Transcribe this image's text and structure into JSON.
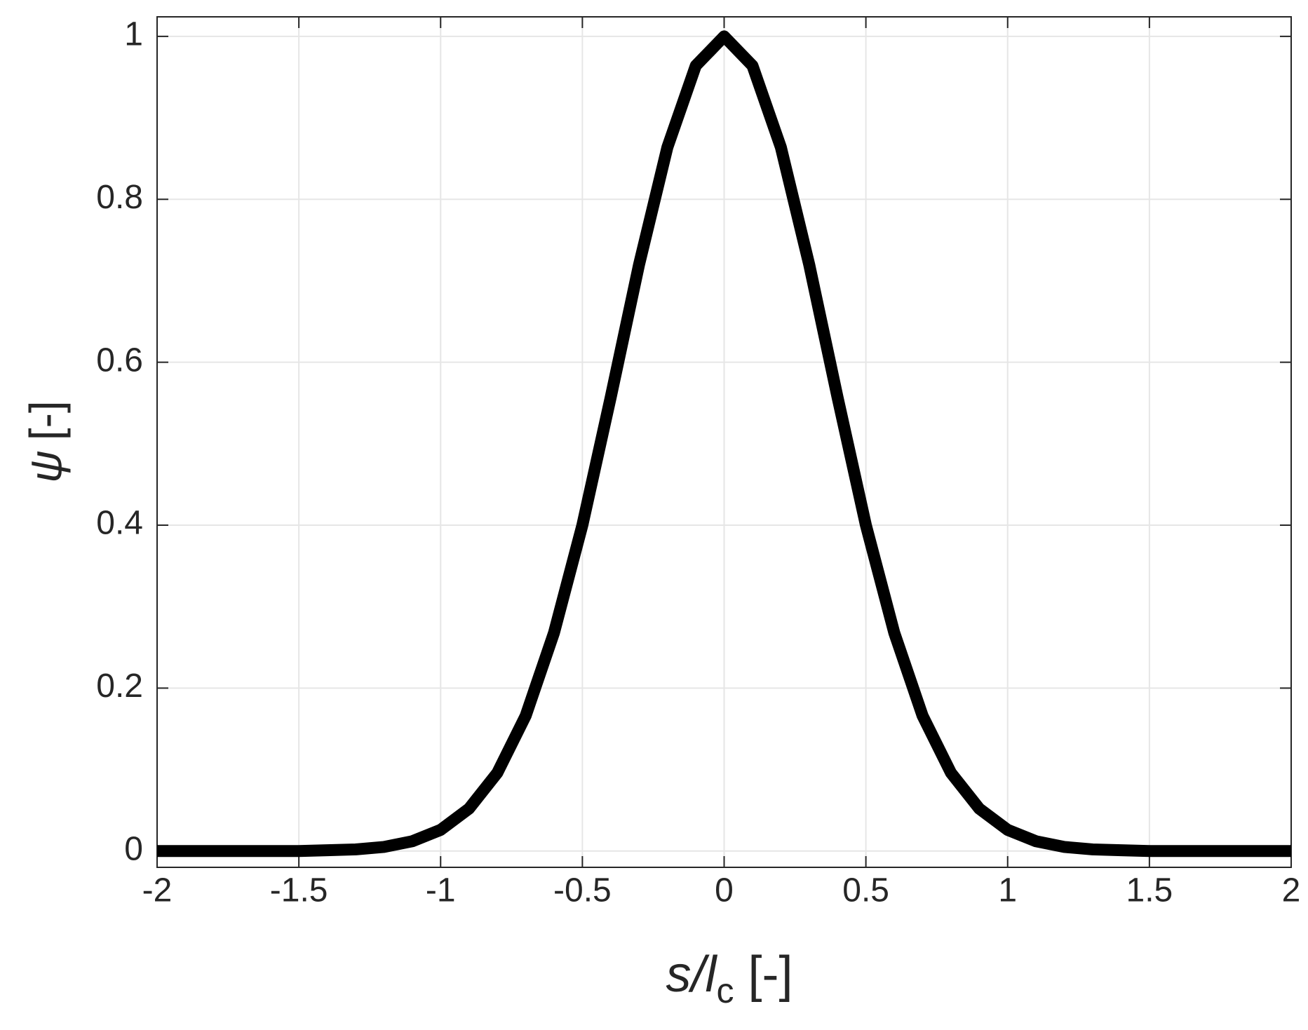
{
  "chart_data": {
    "type": "line",
    "x_label": {
      "var": "s/l",
      "sub": "c",
      "unit": "[-]"
    },
    "y_label": {
      "symbol": "ψ",
      "unit": "[-]"
    },
    "x": [
      -2,
      -1.9,
      -1.8,
      -1.7,
      -1.6,
      -1.5,
      -1.4,
      -1.3,
      -1.2,
      -1.1,
      -1,
      -0.9,
      -0.8,
      -0.7,
      -0.6,
      -0.5,
      -0.4,
      -0.3,
      -0.2,
      -0.1,
      0,
      0.1,
      0.2,
      0.3,
      0.4,
      0.5,
      0.6,
      0.7,
      0.8,
      0.9,
      1,
      1.1,
      1.2,
      1.3,
      1.4,
      1.5,
      1.6,
      1.7,
      1.8,
      1.9,
      2
    ],
    "series": [
      {
        "color": "#000000",
        "values": [
          0,
          0,
          0,
          0,
          0,
          0,
          0.001,
          0.002,
          0.005,
          0.012,
          0.026,
          0.052,
          0.096,
          0.166,
          0.268,
          0.4,
          0.557,
          0.72,
          0.864,
          0.964,
          1,
          0.964,
          0.864,
          0.72,
          0.557,
          0.4,
          0.268,
          0.166,
          0.096,
          0.052,
          0.026,
          0.012,
          0.005,
          0.002,
          0.001,
          0,
          0,
          0,
          0,
          0,
          0
        ]
      }
    ],
    "xlim": [
      -2,
      2
    ],
    "ylim": [
      -0.02,
      1.024
    ],
    "xticks": [
      -2,
      -1.5,
      -1,
      -0.5,
      0,
      0.5,
      1,
      1.5,
      2
    ],
    "yticks": [
      0,
      0.2,
      0.4,
      0.6,
      0.8,
      1
    ],
    "grid": true
  }
}
